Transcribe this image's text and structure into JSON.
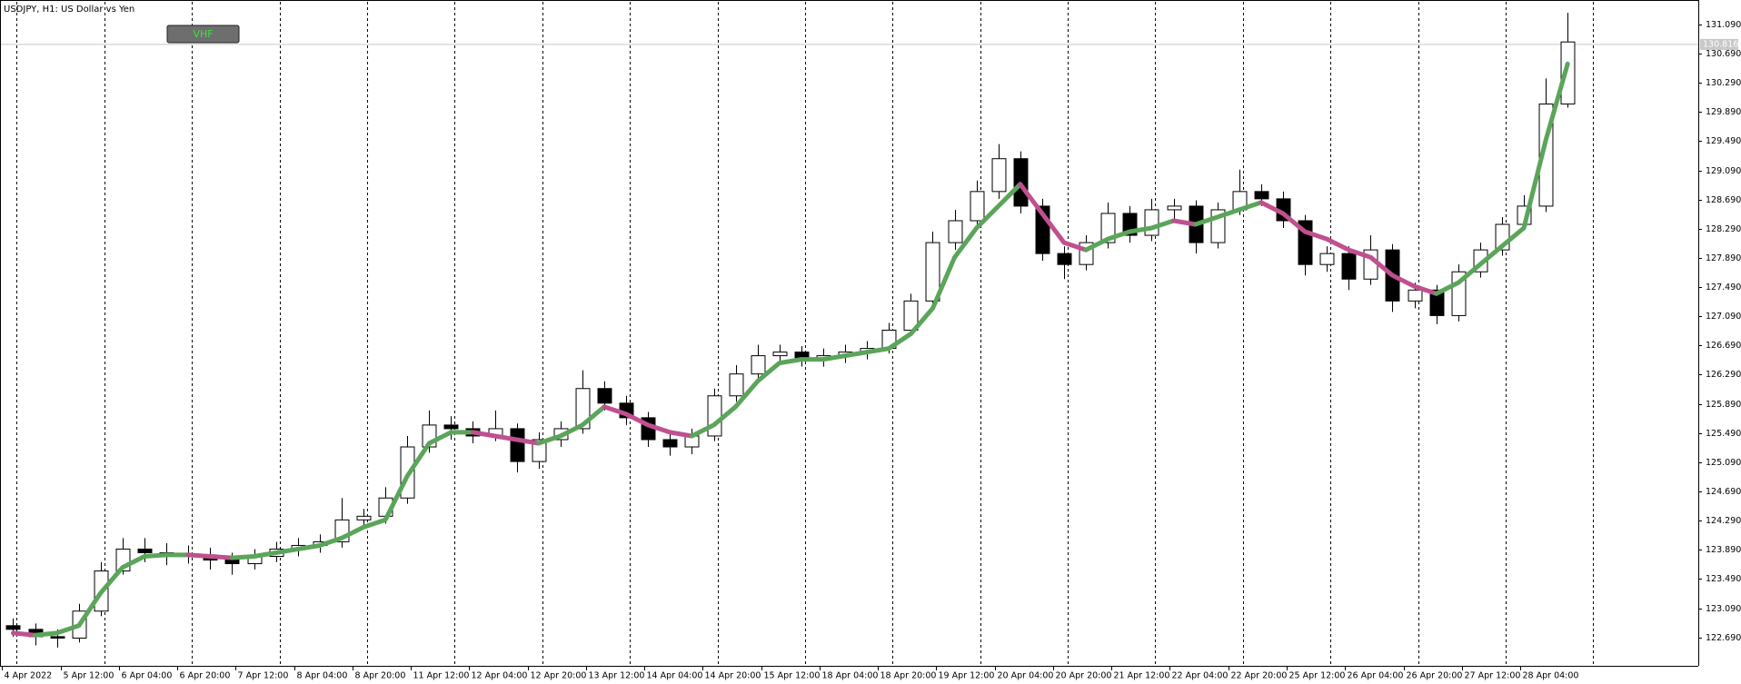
{
  "chart_data": {
    "type": "candlestick",
    "title": "USDJPY, H1:  US Dollar vs Yen",
    "x": [
      0,
      6,
      12,
      18,
      24,
      30,
      36,
      42,
      48,
      54,
      60,
      66,
      72,
      78,
      84,
      90,
      96,
      102,
      108,
      114,
      120,
      126,
      132,
      138,
      144,
      150,
      156,
      162,
      168,
      174,
      180,
      186,
      192,
      198,
      204,
      210,
      216,
      222,
      228,
      234,
      240,
      246,
      252,
      258,
      264,
      270,
      276,
      282,
      288,
      294,
      300,
      306,
      312,
      318,
      324,
      330,
      336,
      342,
      348,
      354,
      360,
      366,
      372,
      378,
      384,
      390,
      396,
      402,
      408,
      414,
      420,
      426
    ],
    "open": [
      122.85,
      122.8,
      122.7,
      122.68,
      123.05,
      123.6,
      123.9,
      123.85,
      123.8,
      123.82,
      123.75,
      123.7,
      123.8,
      123.9,
      123.95,
      124.0,
      124.3,
      124.35,
      124.6,
      125.3,
      125.6,
      125.55,
      125.45,
      125.55,
      125.1,
      125.4,
      125.55,
      126.1,
      125.9,
      125.7,
      125.4,
      125.3,
      125.45,
      126.0,
      126.3,
      126.55,
      126.6,
      126.5,
      126.55,
      126.6,
      126.65,
      126.9,
      127.3,
      128.1,
      128.4,
      128.8,
      129.25,
      128.6,
      127.95,
      127.8,
      128.1,
      128.5,
      128.2,
      128.55,
      128.6,
      128.1,
      128.55,
      128.8,
      128.7,
      128.4,
      127.8,
      127.95,
      127.6,
      128.0,
      127.3,
      127.45,
      127.1,
      127.7,
      128.0,
      128.35,
      128.6,
      130.0
    ],
    "high": [
      122.95,
      122.88,
      122.8,
      123.15,
      123.72,
      124.05,
      124.05,
      123.98,
      123.95,
      123.92,
      123.85,
      123.9,
      124.0,
      124.05,
      124.1,
      124.6,
      124.45,
      124.75,
      125.45,
      125.8,
      125.72,
      125.65,
      125.8,
      125.62,
      125.5,
      125.65,
      126.35,
      126.2,
      126.0,
      125.78,
      125.5,
      125.55,
      126.1,
      126.42,
      126.7,
      126.7,
      126.68,
      126.65,
      126.7,
      126.75,
      127.0,
      127.4,
      128.25,
      128.55,
      128.95,
      129.45,
      129.35,
      128.7,
      128.05,
      128.2,
      128.65,
      128.6,
      128.7,
      128.7,
      128.68,
      128.65,
      129.1,
      128.9,
      128.8,
      128.48,
      128.05,
      128.05,
      128.2,
      128.08,
      127.55,
      127.52,
      127.8,
      128.1,
      128.45,
      128.75,
      130.35,
      131.25
    ],
    "low": [
      122.7,
      122.58,
      122.55,
      122.62,
      122.98,
      123.55,
      123.72,
      123.68,
      123.7,
      123.62,
      123.55,
      123.62,
      123.72,
      123.8,
      123.85,
      123.92,
      124.2,
      124.25,
      124.52,
      125.22,
      125.4,
      125.35,
      125.38,
      124.95,
      125.0,
      125.3,
      125.48,
      125.8,
      125.6,
      125.3,
      125.18,
      125.2,
      125.38,
      125.92,
      126.22,
      126.45,
      126.4,
      126.4,
      126.45,
      126.5,
      126.58,
      126.85,
      127.25,
      128.0,
      128.3,
      128.7,
      128.5,
      127.85,
      127.6,
      127.72,
      128.02,
      128.1,
      128.12,
      128.4,
      127.95,
      128.02,
      128.48,
      128.6,
      128.3,
      127.65,
      127.7,
      127.45,
      127.52,
      127.15,
      127.2,
      126.98,
      127.02,
      127.62,
      127.92,
      128.28,
      128.52,
      129.95
    ],
    "close": [
      122.8,
      122.7,
      122.68,
      123.05,
      123.6,
      123.9,
      123.85,
      123.8,
      123.82,
      123.75,
      123.7,
      123.8,
      123.9,
      123.95,
      124.0,
      124.3,
      124.35,
      124.6,
      125.3,
      125.6,
      125.55,
      125.45,
      125.55,
      125.1,
      125.4,
      125.55,
      126.1,
      125.9,
      125.7,
      125.4,
      125.3,
      125.45,
      126.0,
      126.3,
      126.55,
      126.6,
      126.5,
      126.55,
      126.6,
      126.65,
      126.9,
      127.3,
      128.1,
      128.4,
      128.8,
      129.25,
      128.6,
      127.95,
      127.8,
      128.1,
      128.5,
      128.2,
      128.55,
      128.6,
      128.1,
      128.55,
      128.8,
      128.7,
      128.4,
      127.8,
      127.95,
      127.6,
      128.0,
      127.3,
      127.45,
      127.1,
      127.7,
      128.0,
      128.35,
      128.6,
      130.0,
      130.85
    ],
    "bull_color": "#ffffff",
    "bear_color": "#000000",
    "indicator": {
      "name": "VHF",
      "up_color": "#5aa55a",
      "down_color": "#c0508f",
      "values": [
        122.75,
        122.72,
        122.75,
        122.85,
        123.3,
        123.65,
        123.8,
        123.82,
        123.82,
        123.8,
        123.78,
        123.8,
        123.85,
        123.9,
        123.95,
        124.05,
        124.2,
        124.3,
        124.9,
        125.35,
        125.5,
        125.5,
        125.45,
        125.4,
        125.35,
        125.45,
        125.6,
        125.85,
        125.75,
        125.6,
        125.5,
        125.45,
        125.6,
        125.85,
        126.2,
        126.45,
        126.5,
        126.5,
        126.55,
        126.6,
        126.65,
        126.85,
        127.2,
        127.9,
        128.3,
        128.6,
        128.9,
        128.5,
        128.1,
        128.0,
        128.15,
        128.25,
        128.3,
        128.4,
        128.35,
        128.45,
        128.55,
        128.65,
        128.5,
        128.25,
        128.15,
        128.0,
        127.9,
        127.65,
        127.5,
        127.4,
        127.55,
        127.8,
        128.05,
        128.3,
        129.5,
        130.55
      ]
    },
    "current_price": {
      "value": 130.816,
      "label": "130.816"
    },
    "separators": [
      4,
      28,
      52,
      76,
      100,
      124,
      148,
      172,
      196,
      220,
      244,
      268,
      292,
      316,
      340,
      364,
      388,
      412,
      436
    ],
    "xlim": [
      -0.6,
      464.8
    ],
    "ylim": [
      122.3,
      131.4
    ],
    "xticks": [
      {
        "value": 0,
        "label": "4 Apr 2022"
      },
      {
        "value": 16,
        "label": "5 Apr 12:00"
      },
      {
        "value": 32,
        "label": "6 Apr 04:00"
      },
      {
        "value": 48,
        "label": "6 Apr 20:00"
      },
      {
        "value": 64,
        "label": "7 Apr 12:00"
      },
      {
        "value": 80,
        "label": "8 Apr 04:00"
      },
      {
        "value": 96,
        "label": "8 Apr 20:00"
      },
      {
        "value": 112,
        "label": "11 Apr 12:00"
      },
      {
        "value": 128,
        "label": "12 Apr 04:00"
      },
      {
        "value": 144,
        "label": "12 Apr 20:00"
      },
      {
        "value": 160,
        "label": "13 Apr 12:00"
      },
      {
        "value": 176,
        "label": "14 Apr 04:00"
      },
      {
        "value": 192,
        "label": "14 Apr 20:00"
      },
      {
        "value": 208,
        "label": "15 Apr 12:00"
      },
      {
        "value": 224,
        "label": "18 Apr 04:00"
      },
      {
        "value": 240,
        "label": "18 Apr 20:00"
      },
      {
        "value": 256,
        "label": "19 Apr 12:00"
      },
      {
        "value": 272,
        "label": "20 Apr 04:00"
      },
      {
        "value": 288,
        "label": "20 Apr 20:00"
      },
      {
        "value": 304,
        "label": "21 Apr 12:00"
      },
      {
        "value": 320,
        "label": "22 Apr 04:00"
      },
      {
        "value": 336,
        "label": "22 Apr 20:00"
      },
      {
        "value": 352,
        "label": "25 Apr 12:00"
      },
      {
        "value": 368,
        "label": "26 Apr 04:00"
      },
      {
        "value": 384,
        "label": "26 Apr 20:00"
      },
      {
        "value": 400,
        "label": "27 Apr 12:00"
      },
      {
        "value": 416,
        "label": "28 Apr 04:00"
      }
    ],
    "yticks": [
      {
        "value": 122.69,
        "label": "122.690"
      },
      {
        "value": 123.09,
        "label": "123.090"
      },
      {
        "value": 123.49,
        "label": "123.490"
      },
      {
        "value": 123.89,
        "label": "123.890"
      },
      {
        "value": 124.29,
        "label": "124.290"
      },
      {
        "value": 124.69,
        "label": "124.690"
      },
      {
        "value": 125.09,
        "label": "125.090"
      },
      {
        "value": 125.49,
        "label": "125.490"
      },
      {
        "value": 125.89,
        "label": "125.890"
      },
      {
        "value": 126.29,
        "label": "126.290"
      },
      {
        "value": 126.69,
        "label": "126.690"
      },
      {
        "value": 127.09,
        "label": "127.090"
      },
      {
        "value": 127.49,
        "label": "127.490"
      },
      {
        "value": 127.89,
        "label": "127.890"
      },
      {
        "value": 128.29,
        "label": "128.290"
      },
      {
        "value": 128.69,
        "label": "128.690"
      },
      {
        "value": 129.09,
        "label": "129.090"
      },
      {
        "value": 129.49,
        "label": "129.490"
      },
      {
        "value": 129.89,
        "label": "129.890"
      },
      {
        "value": 130.29,
        "label": "130.290"
      },
      {
        "value": 130.69,
        "label": "130.690"
      },
      {
        "value": 131.09,
        "label": "131.090"
      }
    ]
  }
}
